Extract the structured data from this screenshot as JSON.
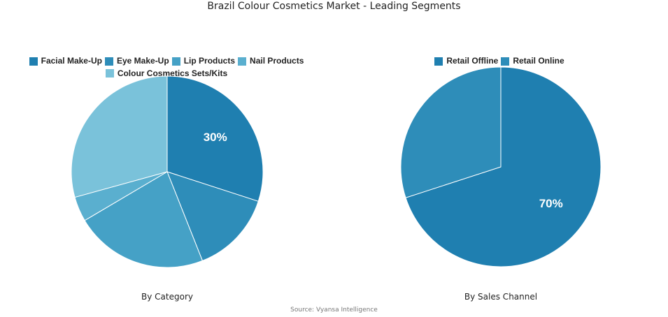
{
  "title": "Brazil Colour Cosmetics Market - Leading Segments",
  "source": "Source: Vyansa Intelligence",
  "chart_data": [
    {
      "type": "pie",
      "subtitle": "By Category",
      "labels": [
        "Facial Make-Up",
        "Eye Make-Up",
        "Lip Products",
        "Nail Products",
        "Colour Cosmetics Sets/Kits"
      ],
      "values": [
        30,
        14,
        22.5,
        4.2,
        29.3
      ],
      "colors": [
        "#1f7fb0",
        "#2e8db9",
        "#45a1c6",
        "#5aafcf",
        "#7ac2da"
      ],
      "data_labels": [
        "30%",
        "",
        "",
        "",
        ""
      ],
      "legend_position": "top"
    },
    {
      "type": "pie",
      "subtitle": "By Sales Channel",
      "labels": [
        "Retail Offline",
        "Retail Online"
      ],
      "values": [
        70,
        30
      ],
      "colors": [
        "#1f7fb0",
        "#2e8db9"
      ],
      "data_labels": [
        "70%",
        ""
      ],
      "legend_position": "top"
    }
  ]
}
